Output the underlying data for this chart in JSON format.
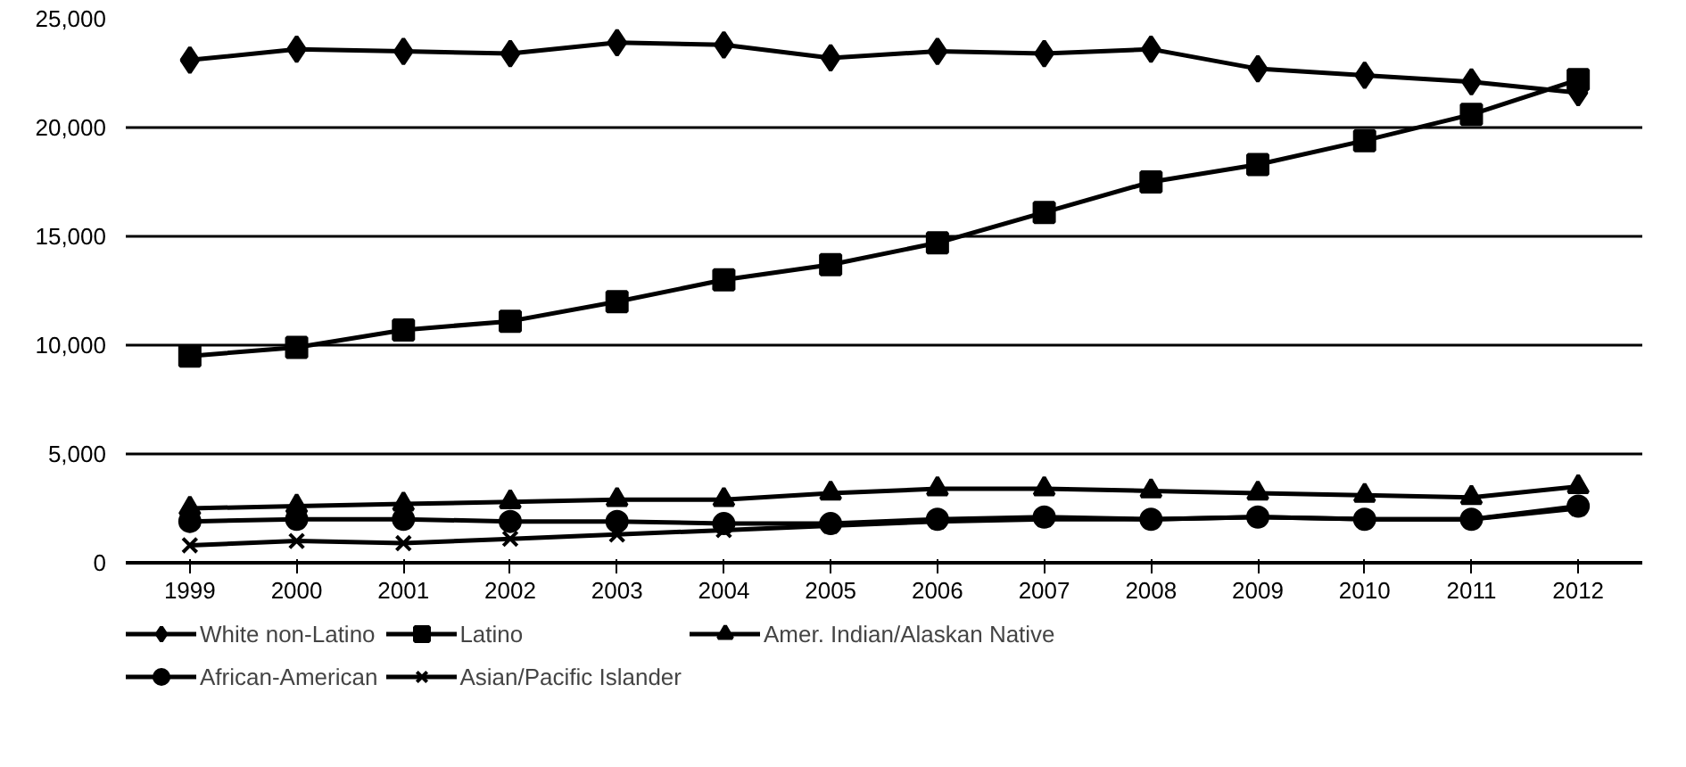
{
  "chart_data": {
    "type": "line",
    "categories": [
      "1999",
      "2000",
      "2001",
      "2002",
      "2003",
      "2004",
      "2005",
      "2006",
      "2007",
      "2008",
      "2009",
      "2010",
      "2011",
      "2012"
    ],
    "ylim": [
      0,
      25000
    ],
    "yticks": [
      {
        "value": 0,
        "label": "0"
      },
      {
        "value": 5000,
        "label": "5,000"
      },
      {
        "value": 10000,
        "label": "10,000"
      },
      {
        "value": 15000,
        "label": "15,000"
      },
      {
        "value": 20000,
        "label": "20,000"
      },
      {
        "value": 25000,
        "label": "25,000"
      }
    ],
    "grid": "y",
    "legend": "bottom",
    "series": [
      {
        "name": "White non-Latino",
        "color": "#000000",
        "marker": "diamond",
        "values": [
          23100,
          23600,
          23500,
          23400,
          23900,
          23800,
          23200,
          23500,
          23400,
          23600,
          22700,
          22400,
          22100,
          21600
        ]
      },
      {
        "name": "Latino",
        "color": "#000000",
        "marker": "square",
        "values": [
          9500,
          9900,
          10700,
          11100,
          12000,
          13000,
          13700,
          14700,
          16100,
          17500,
          18300,
          19400,
          20600,
          22200
        ]
      },
      {
        "name": "Amer. Indian/Alaskan Native",
        "color": "#000000",
        "marker": "triangle",
        "values": [
          2500,
          2600,
          2700,
          2800,
          2900,
          2900,
          3200,
          3400,
          3400,
          3300,
          3200,
          3100,
          3000,
          3500
        ]
      },
      {
        "name": "African-American",
        "color": "#000000",
        "marker": "circle",
        "values": [
          1900,
          2000,
          2000,
          1900,
          1900,
          1800,
          1800,
          2000,
          2100,
          2000,
          2100,
          2000,
          2000,
          2600
        ]
      },
      {
        "name": "Asian/Pacific Islander",
        "color": "#000000",
        "marker": "cross",
        "values": [
          800,
          1000,
          900,
          1100,
          1300,
          1500,
          1700,
          1900,
          2000,
          2000,
          2100,
          2000,
          2000,
          2500
        ]
      }
    ]
  }
}
